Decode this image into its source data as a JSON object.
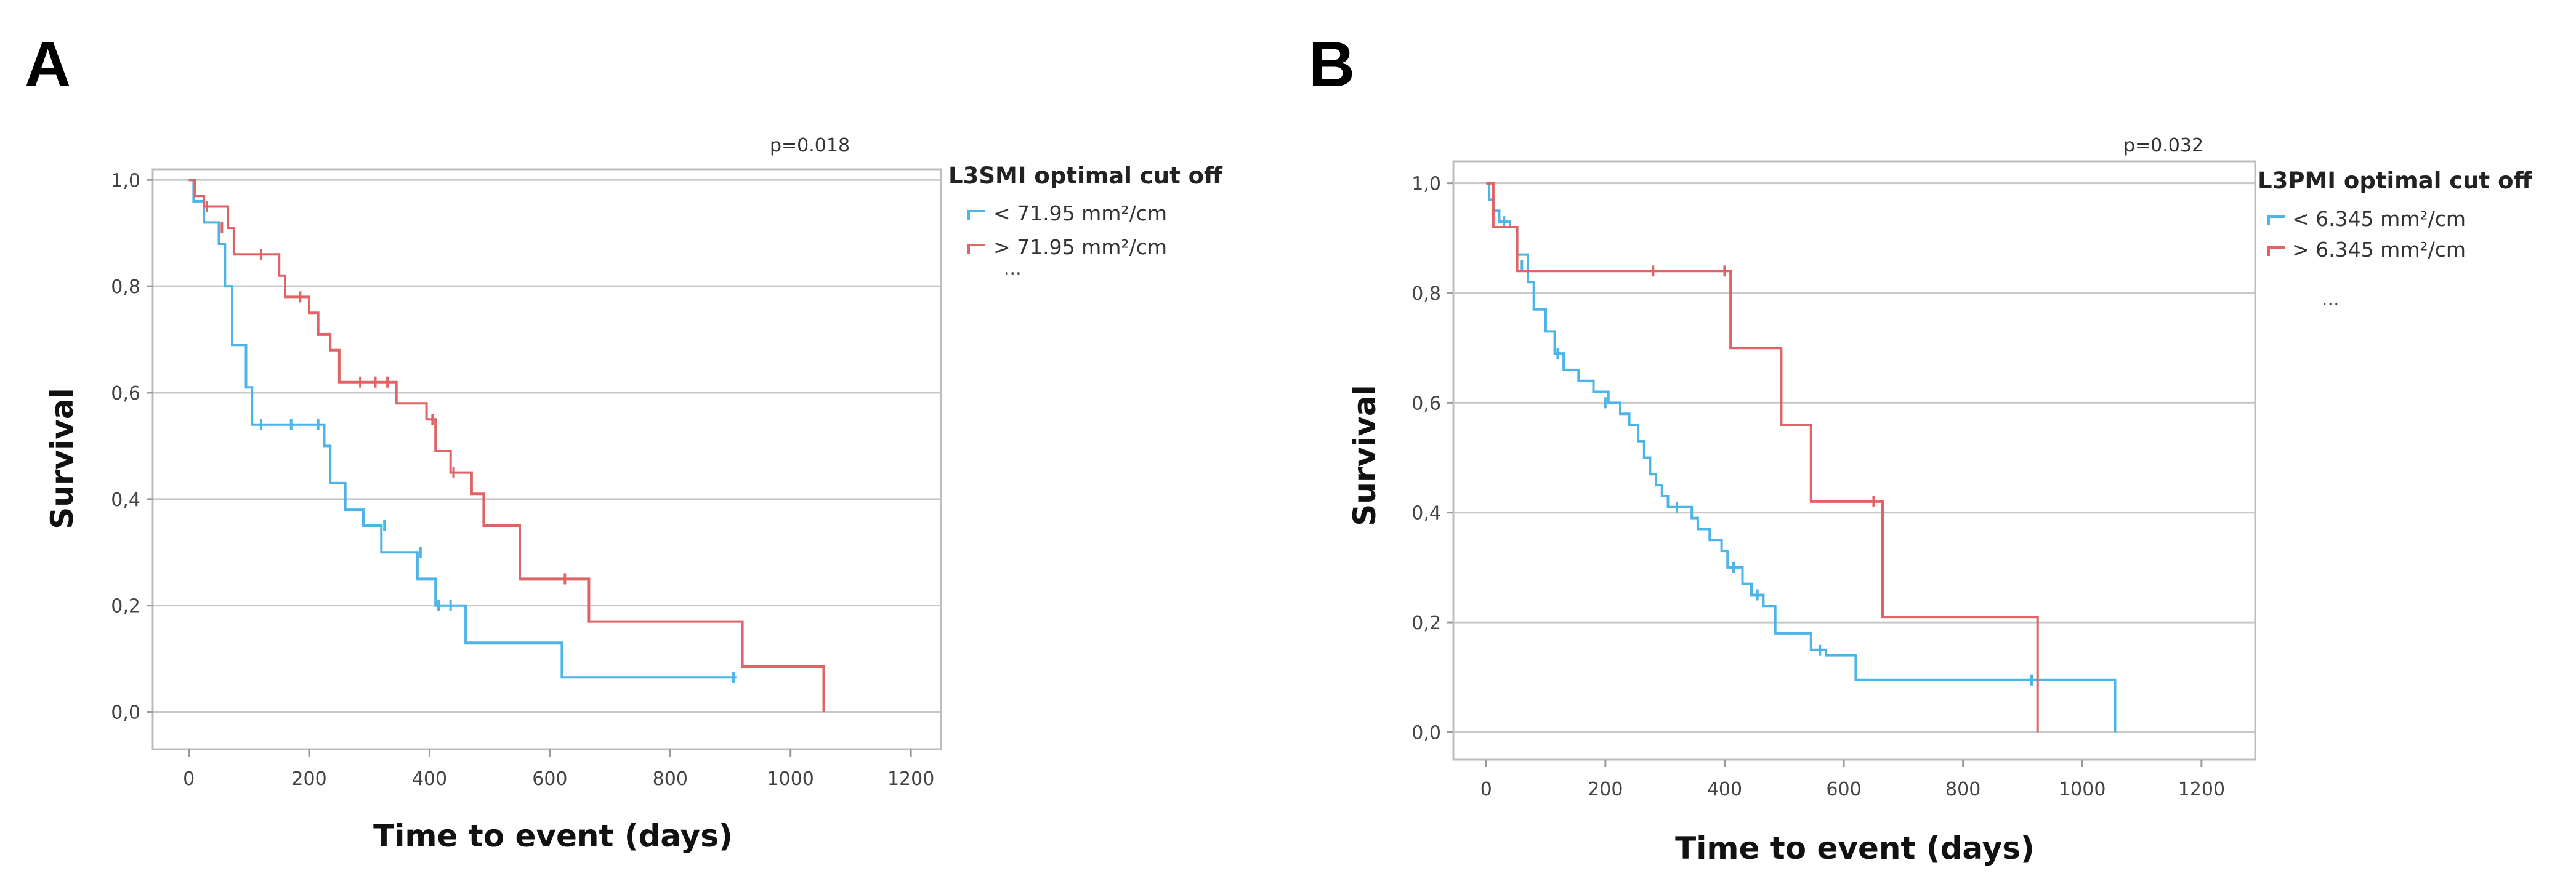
{
  "chart_data": [
    {
      "type": "line",
      "panel_label": "A",
      "p_value": "p=0.018",
      "xlabel": "Time to event (days)",
      "ylabel": "Survival",
      "xlim": [
        -60,
        1250
      ],
      "ylim": [
        -0.07,
        1.02
      ],
      "x_ticks": [
        0,
        200,
        400,
        600,
        800,
        1000,
        1200
      ],
      "x_tick_labels": [
        "0",
        "200",
        "400",
        "600",
        "800",
        "1000",
        "1200"
      ],
      "y_ticks": [
        0,
        0.2,
        0.4,
        0.6,
        0.8,
        1.0
      ],
      "y_tick_labels": [
        "0,0",
        "0,2",
        "0,4",
        "0,6",
        "0,8",
        "1,0"
      ],
      "grid": "horizontal",
      "legend": {
        "title": "L3SMI optimal cut off",
        "placement": "right",
        "entries": [
          "< 71.95 mm²/cm",
          "> 71.95 mm²/cm"
        ],
        "extra": "..."
      },
      "series": [
        {
          "name": "< 71.95 mm²/cm",
          "color": "#4db4e8",
          "step_points": [
            [
              0,
              1.0
            ],
            [
              8,
              0.96
            ],
            [
              25,
              0.92
            ],
            [
              50,
              0.88
            ],
            [
              60,
              0.8
            ],
            [
              72,
              0.69
            ],
            [
              95,
              0.61
            ],
            [
              105,
              0.54
            ],
            [
              200,
              0.54
            ],
            [
              225,
              0.5
            ],
            [
              235,
              0.43
            ],
            [
              260,
              0.38
            ],
            [
              290,
              0.35
            ],
            [
              320,
              0.3
            ],
            [
              380,
              0.25
            ],
            [
              410,
              0.2
            ],
            [
              460,
              0.13
            ],
            [
              620,
              0.065
            ],
            [
              910,
              0.065
            ]
          ],
          "censored": [
            [
              120,
              0.54
            ],
            [
              170,
              0.54
            ],
            [
              215,
              0.54
            ],
            [
              325,
              0.35
            ],
            [
              385,
              0.3
            ],
            [
              415,
              0.2
            ],
            [
              435,
              0.2
            ],
            [
              905,
              0.065
            ]
          ]
        },
        {
          "name": "> 71.95 mm²/cm",
          "color": "#e06466",
          "step_points": [
            [
              0,
              1.0
            ],
            [
              10,
              0.97
            ],
            [
              25,
              0.95
            ],
            [
              65,
              0.91
            ],
            [
              75,
              0.86
            ],
            [
              150,
              0.82
            ],
            [
              160,
              0.78
            ],
            [
              200,
              0.75
            ],
            [
              215,
              0.71
            ],
            [
              235,
              0.68
            ],
            [
              250,
              0.62
            ],
            [
              345,
              0.58
            ],
            [
              395,
              0.55
            ],
            [
              410,
              0.49
            ],
            [
              435,
              0.45
            ],
            [
              470,
              0.41
            ],
            [
              490,
              0.35
            ],
            [
              550,
              0.25
            ],
            [
              665,
              0.17
            ],
            [
              920,
              0.085
            ],
            [
              1055,
              0.0
            ]
          ],
          "censored": [
            [
              30,
              0.95
            ],
            [
              55,
              0.91
            ],
            [
              120,
              0.86
            ],
            [
              185,
              0.78
            ],
            [
              285,
              0.62
            ],
            [
              310,
              0.62
            ],
            [
              330,
              0.62
            ],
            [
              405,
              0.55
            ],
            [
              440,
              0.45
            ],
            [
              625,
              0.25
            ]
          ]
        }
      ]
    },
    {
      "type": "line",
      "panel_label": "B",
      "p_value": "p=0.032",
      "xlabel": "Time to event (days)",
      "ylabel": "Survival",
      "xlim": [
        -55,
        1290
      ],
      "ylim": [
        -0.05,
        1.04
      ],
      "x_ticks": [
        0,
        200,
        400,
        600,
        800,
        1000,
        1200
      ],
      "x_tick_labels": [
        "0",
        "200",
        "400",
        "600",
        "800",
        "1000",
        "1200"
      ],
      "y_ticks": [
        0,
        0.2,
        0.4,
        0.6,
        0.8,
        1.0
      ],
      "y_tick_labels": [
        "0,0",
        "0,2",
        "0,4",
        "0,6",
        "0,8",
        "1,0"
      ],
      "grid": "horizontal",
      "legend": {
        "title": "L3PMI optimal cut off",
        "placement": "right",
        "entries": [
          "< 6.345 mm²/cm",
          "> 6.345 mm²/cm"
        ],
        "extra": "..."
      },
      "series": [
        {
          "name": "< 6.345 mm²/cm",
          "color": "#4db4e8",
          "step_points": [
            [
              0,
              1.0
            ],
            [
              5,
              0.97
            ],
            [
              12,
              0.95
            ],
            [
              22,
              0.93
            ],
            [
              40,
              0.92
            ],
            [
              52,
              0.87
            ],
            [
              70,
              0.82
            ],
            [
              80,
              0.77
            ],
            [
              100,
              0.73
            ],
            [
              115,
              0.69
            ],
            [
              130,
              0.66
            ],
            [
              155,
              0.64
            ],
            [
              180,
              0.62
            ],
            [
              205,
              0.6
            ],
            [
              225,
              0.58
            ],
            [
              240,
              0.56
            ],
            [
              255,
              0.53
            ],
            [
              265,
              0.5
            ],
            [
              275,
              0.47
            ],
            [
              285,
              0.45
            ],
            [
              295,
              0.43
            ],
            [
              305,
              0.41
            ],
            [
              345,
              0.39
            ],
            [
              355,
              0.37
            ],
            [
              375,
              0.35
            ],
            [
              395,
              0.33
            ],
            [
              405,
              0.3
            ],
            [
              430,
              0.27
            ],
            [
              445,
              0.25
            ],
            [
              465,
              0.23
            ],
            [
              485,
              0.18
            ],
            [
              545,
              0.15
            ],
            [
              570,
              0.14
            ],
            [
              620,
              0.095
            ],
            [
              1055,
              0.0
            ]
          ],
          "censored": [
            [
              30,
              0.93
            ],
            [
              60,
              0.85
            ],
            [
              120,
              0.69
            ],
            [
              200,
              0.6
            ],
            [
              320,
              0.41
            ],
            [
              415,
              0.3
            ],
            [
              455,
              0.25
            ],
            [
              560,
              0.15
            ],
            [
              915,
              0.095
            ]
          ]
        },
        {
          "name": "> 6.345 mm²/cm",
          "color": "#e06466",
          "step_points": [
            [
              0,
              1.0
            ],
            [
              12,
              0.92
            ],
            [
              52,
              0.84
            ],
            [
              410,
              0.7
            ],
            [
              495,
              0.56
            ],
            [
              545,
              0.42
            ],
            [
              665,
              0.21
            ],
            [
              925,
              0.0
            ]
          ],
          "censored": [
            [
              280,
              0.84
            ],
            [
              400,
              0.84
            ],
            [
              650,
              0.42
            ]
          ]
        }
      ]
    }
  ]
}
